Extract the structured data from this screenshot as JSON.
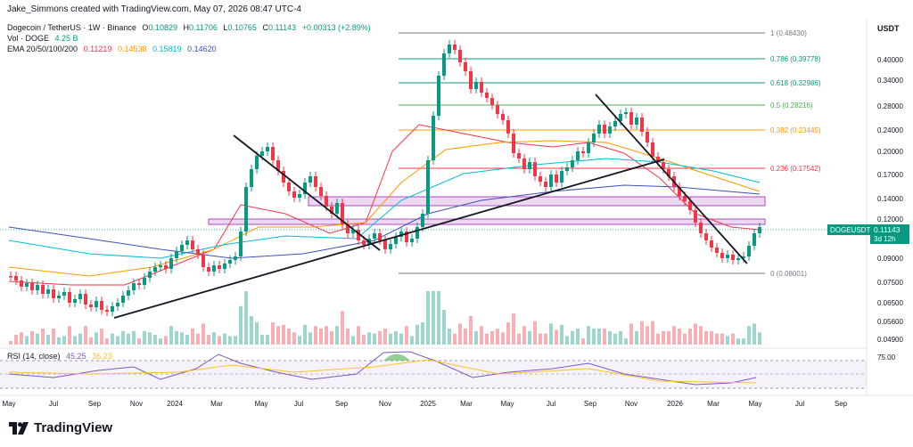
{
  "header": {
    "creator": "Jake_Simmons created with TradingView.com, May 07, 2026 08:47 UTC-4",
    "symbol_line": "Dogecoin / TetherUS · 1W · Binance",
    "ohlc": {
      "o_label": "O",
      "o": "0.10829",
      "h_label": "H",
      "h": "0.11706",
      "l_label": "L",
      "l": "0.10765",
      "c_label": "C",
      "c": "0.11143",
      "change": "+0.00313 (+2.89%)"
    },
    "vol_label": "Vol · DOGE",
    "vol_value": "4.25 B",
    "ema_label": "EMA 20/50/100/200",
    "ema_values": [
      "0.11219",
      "0.14538",
      "0.15819",
      "0.14620"
    ],
    "currency": "USDT"
  },
  "price_axis": [
    "0.40000",
    "0.34000",
    "0.28000",
    "0.24000",
    "0.20000",
    "0.17000",
    "0.14000",
    "0.12000",
    "0.09000",
    "0.07500",
    "0.06500",
    "0.05600",
    "0.04900"
  ],
  "fib_levels": [
    {
      "label": "1 (0.48430)",
      "color": "#787b86"
    },
    {
      "label": "0.786 (0.39778)",
      "color": "#089981"
    },
    {
      "label": "0.618 (0.32986)",
      "color": "#089981"
    },
    {
      "label": "0.5 (0.28216)",
      "color": "#4caf50"
    },
    {
      "label": "0.382 (0.23445)",
      "color": "#ff9800"
    },
    {
      "label": "0.236 (0.17542)",
      "color": "#f23645"
    },
    {
      "label": "0 (0.08001)",
      "color": "#787b86"
    }
  ],
  "current_price": {
    "symbol": "DOGEUSDT",
    "price": "0.11143",
    "countdown": "3d 12h",
    "color": "#089981"
  },
  "rsi": {
    "label": "RSI (14, close)",
    "value": "45.25",
    "ma_value": "36.23",
    "level_label": "75.00"
  },
  "time_axis": [
    "May",
    "Jul",
    "Sep",
    "Nov",
    "2024",
    "Mar",
    "May",
    "Jul",
    "Sep",
    "Nov",
    "2025",
    "Mar",
    "May",
    "Jul",
    "Sep",
    "Nov",
    "2026",
    "Mar",
    "May",
    "Jul",
    "Sep"
  ],
  "colors": {
    "up": "#089981",
    "down": "#f23645",
    "ema20": "#f23645",
    "ema50": "#ff9800",
    "ema100": "#00bcd4",
    "ema200": "#3f51b5",
    "zone": "#9c27b0",
    "rsi": "#7e57c2"
  },
  "footer": {
    "brand": "TradingView",
    "logo_icon": "tradingview-logo-icon"
  }
}
